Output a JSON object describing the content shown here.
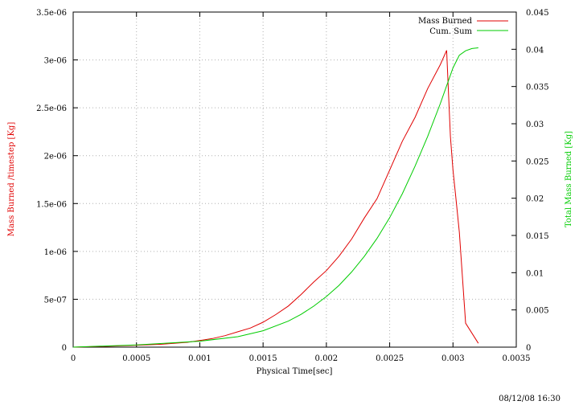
{
  "chart_data": {
    "type": "line",
    "xlabel": "Physical Time[sec]",
    "ylabel_left": "Mass Burned /timestep [Kg]",
    "ylabel_right": "Total Mass Burned [Kg]",
    "xlim": [
      0,
      0.0035
    ],
    "ylim_left": [
      0,
      3.5e-06
    ],
    "ylim_right": [
      0,
      0.045
    ],
    "grid": true,
    "legend_position": "top-right",
    "x_ticks": [
      "0",
      "0.0005",
      "0.001",
      "0.0015",
      "0.002",
      "0.0025",
      "0.003",
      "0.0035"
    ],
    "y_left_ticks": [
      "0",
      "5e-07",
      "1e-06",
      "1.5e-06",
      "2e-06",
      "2.5e-06",
      "3e-06",
      "3.5e-06"
    ],
    "y_right_ticks": [
      "0",
      "0.005",
      "0.01",
      "0.015",
      "0.02",
      "0.025",
      "0.03",
      "0.035",
      "0.04",
      "0.045"
    ],
    "series": [
      {
        "name": "Mass Burned",
        "axis": "left",
        "color": "#e00000",
        "x": [
          0,
          0.0003,
          0.0005,
          0.0007,
          0.0009,
          0.001,
          0.0011,
          0.0012,
          0.0013,
          0.0014,
          0.0015,
          0.0016,
          0.0017,
          0.0018,
          0.0019,
          0.002,
          0.0021,
          0.0022,
          0.0023,
          0.0024,
          0.0025,
          0.0026,
          0.0027,
          0.0028,
          0.0029,
          0.00295,
          0.00298,
          0.003,
          0.00302,
          0.00305,
          0.0031,
          0.0032
        ],
        "y": [
          0,
          1e-08,
          2e-08,
          3e-08,
          5e-08,
          7e-08,
          9e-08,
          1.2e-07,
          1.6e-07,
          2e-07,
          2.6e-07,
          3.4e-07,
          4.3e-07,
          5.5e-07,
          6.8e-07,
          8e-07,
          9.5e-07,
          1.13e-06,
          1.35e-06,
          1.55e-06,
          1.85e-06,
          2.15e-06,
          2.4e-06,
          2.7e-06,
          2.95e-06,
          3.1e-06,
          2.2e-06,
          1.85e-06,
          1.6e-06,
          1.2e-06,
          2.5e-07,
          4e-08
        ]
      },
      {
        "name": "Cum. Sum",
        "axis": "right",
        "color": "#00cc00",
        "x": [
          0,
          0.0005,
          0.001,
          0.0013,
          0.0015,
          0.0017,
          0.0018,
          0.0019,
          0.002,
          0.0021,
          0.0022,
          0.0023,
          0.0024,
          0.0025,
          0.0026,
          0.0027,
          0.0028,
          0.0029,
          0.003,
          0.00305,
          0.0031,
          0.00315,
          0.0032
        ],
        "y": [
          0,
          0.0003,
          0.0008,
          0.0014,
          0.0022,
          0.0035,
          0.0044,
          0.0055,
          0.0068,
          0.0083,
          0.0101,
          0.0122,
          0.0146,
          0.0174,
          0.0206,
          0.0243,
          0.0283,
          0.0327,
          0.0375,
          0.0392,
          0.0398,
          0.0401,
          0.0402
        ]
      }
    ]
  },
  "timestamp": "08/12/08 16:30"
}
